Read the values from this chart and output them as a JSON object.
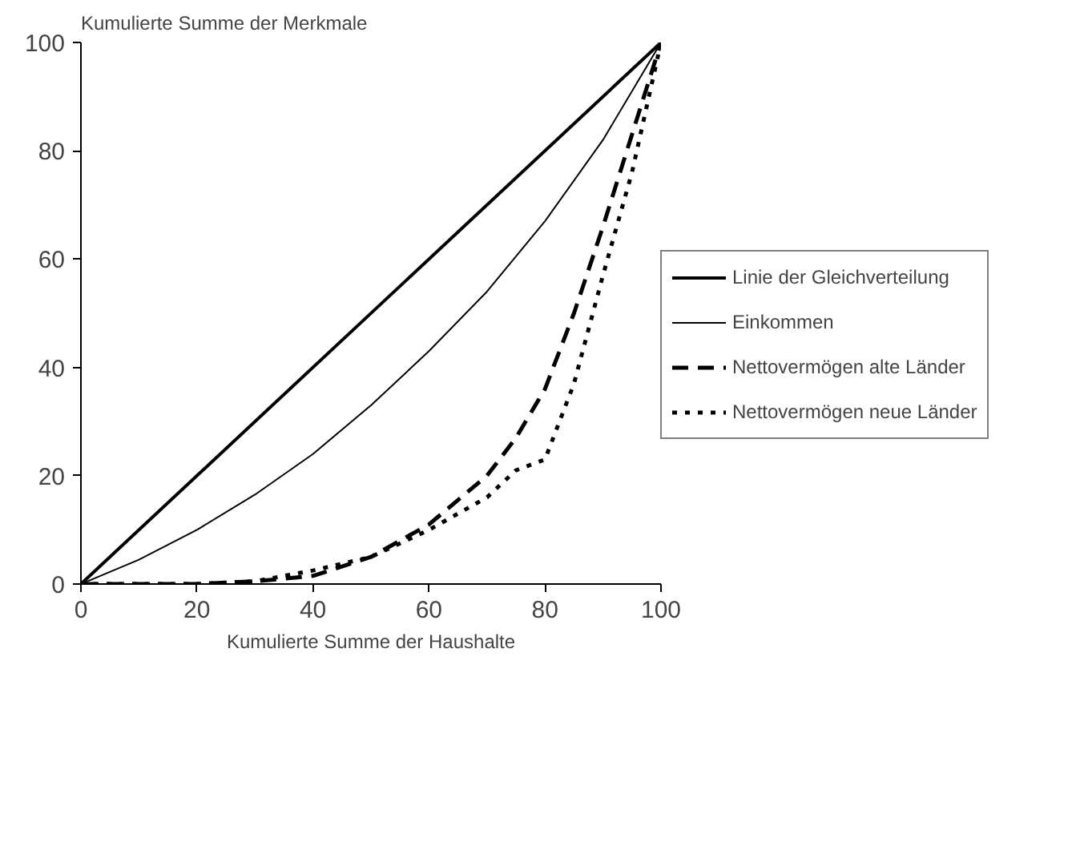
{
  "chart_data": {
    "type": "line",
    "xlabel": "Kumulierte Summe der Haushalte",
    "ylabel": "Kumulierte Summe der Merkmale",
    "xlim": [
      0,
      100
    ],
    "ylim": [
      0,
      100
    ],
    "xticks": [
      0,
      20,
      40,
      60,
      80,
      100
    ],
    "yticks": [
      0,
      20,
      40,
      60,
      80,
      100
    ],
    "grid": false,
    "legend": "right",
    "marker": "none",
    "series": [
      {
        "name": "Linie der Gleichverteilung",
        "color": "#000000",
        "line_style": "solid",
        "x": [
          0,
          100
        ],
        "values": [
          0,
          100
        ]
      },
      {
        "name": "Einkommen",
        "color": "#000000",
        "line_style": "solid",
        "x": [
          0,
          10,
          20,
          30,
          40,
          50,
          60,
          70,
          80,
          90,
          100
        ],
        "values": [
          0,
          4.5,
          10,
          16.5,
          24,
          33,
          43,
          54,
          67,
          82,
          100
        ]
      },
      {
        "name": "Nettovermögen alte Länder",
        "color": "#000000",
        "line_style": "dashed",
        "x": [
          0,
          10,
          20,
          30,
          40,
          50,
          60,
          70,
          75,
          80,
          85,
          90,
          95,
          100
        ],
        "values": [
          0,
          0,
          0,
          0.5,
          1.5,
          5,
          11,
          20,
          27,
          36,
          50,
          66,
          83,
          100
        ]
      },
      {
        "name": "Nettovermögen neue Länder",
        "color": "#000000",
        "line_style": "dotted",
        "x": [
          0,
          10,
          20,
          30,
          40,
          50,
          60,
          70,
          75,
          80,
          85,
          90,
          95,
          100
        ],
        "values": [
          0,
          0,
          0,
          0.5,
          2.5,
          5,
          10,
          16,
          21,
          23,
          37,
          57,
          76,
          100
        ]
      }
    ]
  }
}
